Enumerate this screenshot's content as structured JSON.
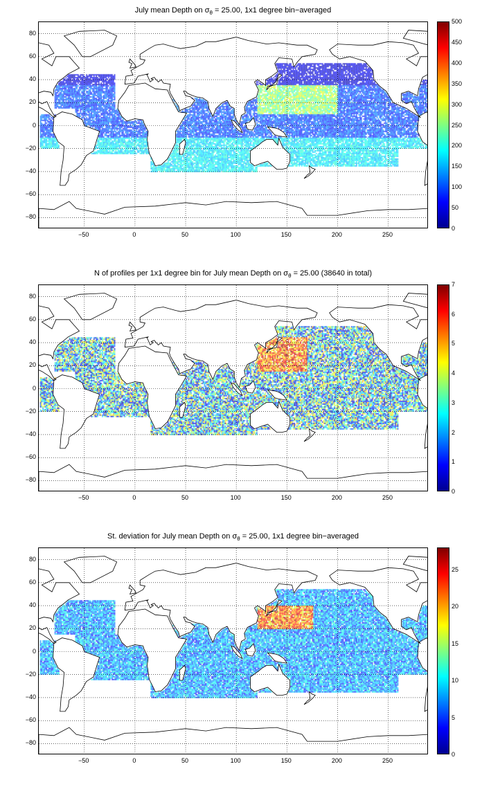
{
  "panels": [
    {
      "title_prefix": "July mean Depth on ",
      "sigma": "σ",
      "theta": "θ",
      "title_suffix": " = 25.00, 1x1 degree bin−averaged",
      "colorbar_ticks": [
        "0",
        "50",
        "100",
        "150",
        "200",
        "250",
        "300",
        "350",
        "400",
        "450",
        "500"
      ]
    },
    {
      "title_prefix": "N of profiles per 1x1 degree bin for July mean Depth on ",
      "sigma": "σ",
      "theta": "θ",
      "title_suffix": " = 25.00 (38640 in total)",
      "colorbar_ticks": [
        "0",
        "1",
        "2",
        "3",
        "4",
        "5",
        "6",
        "7"
      ]
    },
    {
      "title_prefix": "St. deviation for July mean Depth on ",
      "sigma": "σ",
      "theta": "θ",
      "title_suffix": " = 25.00, 1x1 degree bin−averaged",
      "colorbar_ticks": [
        "0",
        "5",
        "10",
        "15",
        "20",
        "25"
      ]
    }
  ],
  "axes": {
    "y_ticks": [
      "80",
      "60",
      "40",
      "20",
      "0",
      "−20",
      "−40",
      "−60",
      "−80"
    ],
    "x_ticks": [
      "−50",
      "0",
      "50",
      "100",
      "150",
      "200",
      "250"
    ]
  },
  "colors": {
    "colormap": "jet",
    "land_outline": "#000000",
    "grid": "#000000"
  }
}
